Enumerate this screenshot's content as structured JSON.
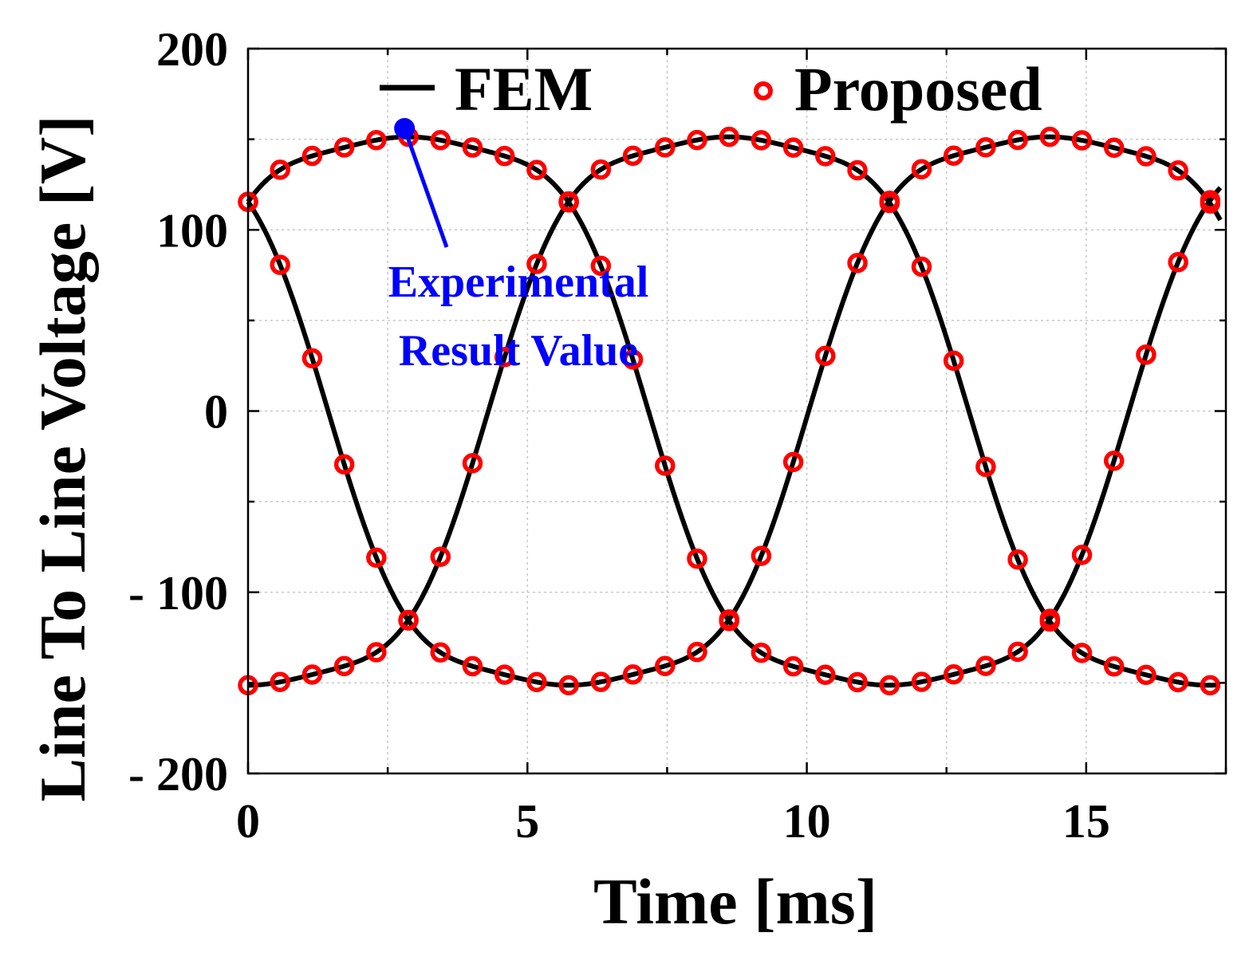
{
  "chart_data": {
    "type": "line",
    "title": "",
    "xlabel": "Time [ms]",
    "ylabel": "Line To Line Voltage [V]",
    "xlim": [
      0,
      17.5
    ],
    "ylim": [
      -200,
      200
    ],
    "x_ticks": [
      0,
      5,
      10,
      15
    ],
    "x_tick_labels": [
      "0",
      "5",
      "10",
      "15"
    ],
    "y_ticks": [
      200,
      100,
      0,
      -100,
      -200
    ],
    "y_tick_labels": [
      "200",
      "100",
      "0",
      "- 100",
      "- 200"
    ],
    "grid": true,
    "period_ms": 17.2,
    "series": [
      {
        "name": "FEM",
        "style": "line",
        "color": "#000000",
        "phase_offsets_deg": [
          0,
          -120,
          120
        ],
        "amplitude_v": 156,
        "flat_top_v": 157
      },
      {
        "name": "Proposed",
        "style": "markers",
        "marker": "circle",
        "color": "#ff0000",
        "sample_step_ms": 0.574,
        "phase_offsets_deg": [
          0,
          -120,
          120
        ]
      }
    ],
    "legend": [
      {
        "label": "FEM",
        "style": "line",
        "color": "#000000"
      },
      {
        "label": "Proposed",
        "style": "marker",
        "color": "#ff0000"
      }
    ],
    "legend_placement": "top",
    "annotations": [
      {
        "text_lines": [
          "Experimental",
          "Result Value"
        ],
        "color": "#0000ff",
        "point_x": 2.8,
        "point_y": 156
      }
    ]
  }
}
